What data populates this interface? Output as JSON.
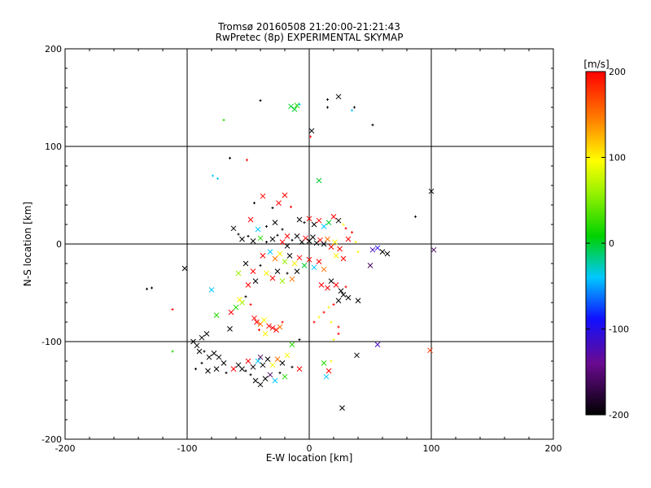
{
  "chart_data": {
    "type": "scatter",
    "title": "Tromsø 20160508 21:20:00-21:21:43",
    "subtitle": "RwPretec (8p) EXPERIMENTAL SKYMAP",
    "xlabel": "E-W location [km]",
    "ylabel": "N-S location [km]",
    "xlim": [
      -200,
      200
    ],
    "ylim": [
      -200,
      200
    ],
    "xticks": [
      "-200",
      "-100",
      "0",
      "100",
      "200"
    ],
    "yticks": [
      "-200",
      "-100",
      "0",
      "100",
      "200"
    ],
    "grid": true,
    "colorbar": {
      "label": "[m/s]",
      "range": [
        -200,
        200
      ],
      "ticks": [
        "-200",
        "-100",
        "0",
        "100",
        "200"
      ],
      "colormap": "black-purple-blue-cyan-green-yellow-red",
      "placement": "right"
    },
    "marker_legend": "x = large-amplitude echo, + / dot = small echo; color = Doppler velocity [m/s]",
    "points": [
      {
        "x": 24,
        "y": 151,
        "v": -200,
        "m": "x"
      },
      {
        "x": 2,
        "y": 116,
        "v": -200,
        "m": "x"
      },
      {
        "x": -40,
        "y": 147,
        "v": -200,
        "m": "+"
      },
      {
        "x": -15,
        "y": 141,
        "v": 0,
        "m": "x"
      },
      {
        "x": -12,
        "y": 138,
        "v": 0,
        "m": "x"
      },
      {
        "x": -10,
        "y": 142,
        "v": 20,
        "m": "x"
      },
      {
        "x": -8,
        "y": 143,
        "v": -40,
        "m": "+"
      },
      {
        "x": 15,
        "y": 140,
        "v": -200,
        "m": "+"
      },
      {
        "x": 37,
        "y": 140,
        "v": -200,
        "m": "+"
      },
      {
        "x": 35,
        "y": 137,
        "v": -40,
        "m": "+"
      },
      {
        "x": 52,
        "y": 122,
        "v": -200,
        "m": "+"
      },
      {
        "x": 15,
        "y": 148,
        "v": -200,
        "m": "+"
      },
      {
        "x": 1,
        "y": 110,
        "v": 200,
        "m": "+"
      },
      {
        "x": -70,
        "y": 127,
        "v": 20,
        "m": "+"
      },
      {
        "x": -65,
        "y": 88,
        "v": -200,
        "m": "+"
      },
      {
        "x": -51,
        "y": 86,
        "v": 200,
        "m": "+"
      },
      {
        "x": -79,
        "y": 70,
        "v": -40,
        "m": "+"
      },
      {
        "x": -75,
        "y": 67,
        "v": -40,
        "m": "+"
      },
      {
        "x": 8,
        "y": 65,
        "v": 0,
        "m": "x"
      },
      {
        "x": 100,
        "y": 54,
        "v": -200,
        "m": "x"
      },
      {
        "x": 87,
        "y": 28,
        "v": -200,
        "m": "+"
      },
      {
        "x": -38,
        "y": 49,
        "v": 200,
        "m": "x"
      },
      {
        "x": -20,
        "y": 50,
        "v": 200,
        "m": "x"
      },
      {
        "x": -25,
        "y": 42,
        "v": 200,
        "m": "x"
      },
      {
        "x": -45,
        "y": 42,
        "v": -200,
        "m": "+"
      },
      {
        "x": -30,
        "y": 37,
        "v": -200,
        "m": "+"
      },
      {
        "x": -15,
        "y": 38,
        "v": 200,
        "m": "+"
      },
      {
        "x": -48,
        "y": 25,
        "v": 200,
        "m": "x"
      },
      {
        "x": -42,
        "y": 15,
        "v": -40,
        "m": "x"
      },
      {
        "x": -35,
        "y": 18,
        "v": -200,
        "m": "+"
      },
      {
        "x": -28,
        "y": 22,
        "v": -200,
        "m": "x"
      },
      {
        "x": -22,
        "y": 15,
        "v": -200,
        "m": "+"
      },
      {
        "x": -18,
        "y": 8,
        "v": 200,
        "m": "x"
      },
      {
        "x": -62,
        "y": 16,
        "v": -200,
        "m": "x"
      },
      {
        "x": -58,
        "y": 10,
        "v": -200,
        "m": "+"
      },
      {
        "x": -55,
        "y": 5,
        "v": -200,
        "m": "x"
      },
      {
        "x": -50,
        "y": 8,
        "v": -200,
        "m": "+"
      },
      {
        "x": -46,
        "y": 3,
        "v": -200,
        "m": "x"
      },
      {
        "x": -40,
        "y": 6,
        "v": 20,
        "m": "x"
      },
      {
        "x": -35,
        "y": 2,
        "v": -200,
        "m": "+"
      },
      {
        "x": -30,
        "y": 5,
        "v": -200,
        "m": "x"
      },
      {
        "x": -26,
        "y": 9,
        "v": -200,
        "m": "+"
      },
      {
        "x": -22,
        "y": 2,
        "v": 200,
        "m": "x"
      },
      {
        "x": -18,
        "y": -2,
        "v": -200,
        "m": "x"
      },
      {
        "x": -14,
        "y": 4,
        "v": -200,
        "m": "+"
      },
      {
        "x": -10,
        "y": 8,
        "v": -200,
        "m": "x"
      },
      {
        "x": -6,
        "y": 2,
        "v": -200,
        "m": "x"
      },
      {
        "x": -3,
        "y": 6,
        "v": 200,
        "m": "x"
      },
      {
        "x": 0,
        "y": 3,
        "v": -200,
        "m": "x"
      },
      {
        "x": 3,
        "y": 7,
        "v": -200,
        "m": "x"
      },
      {
        "x": 6,
        "y": 1,
        "v": -200,
        "m": "x"
      },
      {
        "x": 9,
        "y": 4,
        "v": 200,
        "m": "x"
      },
      {
        "x": 12,
        "y": 0,
        "v": -200,
        "m": "x"
      },
      {
        "x": 15,
        "y": 5,
        "v": 150,
        "m": "x"
      },
      {
        "x": 18,
        "y": -3,
        "v": 200,
        "m": "x"
      },
      {
        "x": 21,
        "y": 2,
        "v": 100,
        "m": "x"
      },
      {
        "x": -8,
        "y": 25,
        "v": -200,
        "m": "x"
      },
      {
        "x": -4,
        "y": 22,
        "v": -200,
        "m": "+"
      },
      {
        "x": 0,
        "y": 26,
        "v": 200,
        "m": "x"
      },
      {
        "x": 4,
        "y": 20,
        "v": -200,
        "m": "x"
      },
      {
        "x": 8,
        "y": 24,
        "v": 200,
        "m": "x"
      },
      {
        "x": 12,
        "y": 18,
        "v": -40,
        "m": "x"
      },
      {
        "x": 16,
        "y": 22,
        "v": 0,
        "m": "x"
      },
      {
        "x": 20,
        "y": 28,
        "v": 200,
        "m": "x"
      },
      {
        "x": 24,
        "y": 24,
        "v": -200,
        "m": "x"
      },
      {
        "x": 28,
        "y": 20,
        "v": 100,
        "m": "+"
      },
      {
        "x": 30,
        "y": 16,
        "v": 200,
        "m": "+"
      },
      {
        "x": 35,
        "y": 12,
        "v": 200,
        "m": "+"
      },
      {
        "x": 38,
        "y": 2,
        "v": 100,
        "m": "+"
      },
      {
        "x": 40,
        "y": -8,
        "v": 100,
        "m": "+"
      },
      {
        "x": 32,
        "y": 5,
        "v": 200,
        "m": "x"
      },
      {
        "x": 25,
        "y": -5,
        "v": 200,
        "m": "x"
      },
      {
        "x": 22,
        "y": -12,
        "v": 100,
        "m": "x"
      },
      {
        "x": 28,
        "y": -15,
        "v": 200,
        "m": "x"
      },
      {
        "x": -38,
        "y": -12,
        "v": 200,
        "m": "x"
      },
      {
        "x": -32,
        "y": -8,
        "v": -40,
        "m": "x"
      },
      {
        "x": -28,
        "y": -15,
        "v": 150,
        "m": "x"
      },
      {
        "x": -24,
        "y": -10,
        "v": 100,
        "m": "x"
      },
      {
        "x": -20,
        "y": -18,
        "v": 60,
        "m": "x"
      },
      {
        "x": -16,
        "y": -12,
        "v": -200,
        "m": "x"
      },
      {
        "x": -12,
        "y": -20,
        "v": 100,
        "m": "x"
      },
      {
        "x": -8,
        "y": -14,
        "v": 200,
        "m": "x"
      },
      {
        "x": -4,
        "y": -22,
        "v": 0,
        "m": "x"
      },
      {
        "x": 0,
        "y": -16,
        "v": 200,
        "m": "x"
      },
      {
        "x": 4,
        "y": -24,
        "v": -40,
        "m": "x"
      },
      {
        "x": 8,
        "y": -18,
        "v": 200,
        "m": "x"
      },
      {
        "x": 12,
        "y": -26,
        "v": 150,
        "m": "x"
      },
      {
        "x": -52,
        "y": -20,
        "v": -200,
        "m": "x"
      },
      {
        "x": -46,
        "y": -28,
        "v": 200,
        "m": "x"
      },
      {
        "x": -40,
        "y": -22,
        "v": -200,
        "m": "+"
      },
      {
        "x": -35,
        "y": -30,
        "v": 100,
        "m": "x"
      },
      {
        "x": -30,
        "y": -35,
        "v": 200,
        "m": "x"
      },
      {
        "x": -26,
        "y": -28,
        "v": -200,
        "m": "x"
      },
      {
        "x": -22,
        "y": -38,
        "v": 60,
        "m": "x"
      },
      {
        "x": -18,
        "y": -30,
        "v": -200,
        "m": "+"
      },
      {
        "x": -14,
        "y": -36,
        "v": 150,
        "m": "x"
      },
      {
        "x": -10,
        "y": -28,
        "v": -200,
        "m": "x"
      },
      {
        "x": -44,
        "y": -38,
        "v": -200,
        "m": "x"
      },
      {
        "x": -50,
        "y": -42,
        "v": 200,
        "m": "x"
      },
      {
        "x": -58,
        "y": -30,
        "v": 60,
        "m": "x"
      },
      {
        "x": -102,
        "y": -25,
        "v": -200,
        "m": "x"
      },
      {
        "x": -133,
        "y": -46,
        "v": -200,
        "m": "+"
      },
      {
        "x": -129,
        "y": -45,
        "v": -200,
        "m": "+"
      },
      {
        "x": -80,
        "y": -47,
        "v": -40,
        "m": "x"
      },
      {
        "x": -112,
        "y": -67,
        "v": 200,
        "m": "+"
      },
      {
        "x": 10,
        "y": -42,
        "v": 200,
        "m": "x"
      },
      {
        "x": 15,
        "y": -45,
        "v": 200,
        "m": "x"
      },
      {
        "x": 18,
        "y": -38,
        "v": -200,
        "m": "x"
      },
      {
        "x": 22,
        "y": -42,
        "v": 200,
        "m": "x"
      },
      {
        "x": 26,
        "y": -48,
        "v": -200,
        "m": "x"
      },
      {
        "x": 30,
        "y": -44,
        "v": 200,
        "m": "+"
      },
      {
        "x": 28,
        "y": -52,
        "v": -200,
        "m": "x"
      },
      {
        "x": 32,
        "y": -55,
        "v": -200,
        "m": "x"
      },
      {
        "x": 24,
        "y": -58,
        "v": -200,
        "m": "x"
      },
      {
        "x": 20,
        "y": -62,
        "v": 200,
        "m": "+"
      },
      {
        "x": 16,
        "y": -65,
        "v": 100,
        "m": "+"
      },
      {
        "x": 12,
        "y": -70,
        "v": 200,
        "m": "+"
      },
      {
        "x": 8,
        "y": -75,
        "v": 100,
        "m": "+"
      },
      {
        "x": 4,
        "y": -80,
        "v": 200,
        "m": "+"
      },
      {
        "x": 18,
        "y": -80,
        "v": 100,
        "m": "+"
      },
      {
        "x": 24,
        "y": -85,
        "v": 200,
        "m": "+"
      },
      {
        "x": 40,
        "y": -58,
        "v": -200,
        "m": "x"
      },
      {
        "x": 50,
        "y": -22,
        "v": -160,
        "m": "x"
      },
      {
        "x": 52,
        "y": -6,
        "v": -120,
        "m": "x"
      },
      {
        "x": 56,
        "y": -4,
        "v": -100,
        "m": "x"
      },
      {
        "x": 60,
        "y": -8,
        "v": -200,
        "m": "x"
      },
      {
        "x": 64,
        "y": -10,
        "v": -200,
        "m": "x"
      },
      {
        "x": 102,
        "y": -6,
        "v": -160,
        "m": "x"
      },
      {
        "x": 56,
        "y": -103,
        "v": -120,
        "m": "x"
      },
      {
        "x": 99,
        "y": -109,
        "v": 180,
        "m": "x"
      },
      {
        "x": 39,
        "y": -114,
        "v": -200,
        "m": "x"
      },
      {
        "x": 27,
        "y": -168,
        "v": -200,
        "m": "x"
      },
      {
        "x": -55,
        "y": -60,
        "v": 60,
        "m": "x"
      },
      {
        "x": -60,
        "y": -65,
        "v": 20,
        "m": "x"
      },
      {
        "x": -64,
        "y": -70,
        "v": 200,
        "m": "x"
      },
      {
        "x": -57,
        "y": -57,
        "v": 100,
        "m": "x"
      },
      {
        "x": -52,
        "y": -54,
        "v": -200,
        "m": "+"
      },
      {
        "x": -48,
        "y": -62,
        "v": 200,
        "m": "+"
      },
      {
        "x": -76,
        "y": -73,
        "v": 20,
        "m": "x"
      },
      {
        "x": -65,
        "y": -87,
        "v": -200,
        "m": "x"
      },
      {
        "x": -45,
        "y": -76,
        "v": 200,
        "m": "x"
      },
      {
        "x": -43,
        "y": -80,
        "v": 200,
        "m": "x"
      },
      {
        "x": -40,
        "y": -82,
        "v": 150,
        "m": "x"
      },
      {
        "x": -37,
        "y": -78,
        "v": 100,
        "m": "x"
      },
      {
        "x": -33,
        "y": -84,
        "v": 200,
        "m": "x"
      },
      {
        "x": -30,
        "y": -86,
        "v": 200,
        "m": "x"
      },
      {
        "x": -27,
        "y": -88,
        "v": 200,
        "m": "x"
      },
      {
        "x": -24,
        "y": -85,
        "v": 150,
        "m": "x"
      },
      {
        "x": -41,
        "y": -88,
        "v": 200,
        "m": "+"
      },
      {
        "x": -36,
        "y": -92,
        "v": 100,
        "m": "x"
      },
      {
        "x": -22,
        "y": -80,
        "v": 200,
        "m": "+"
      },
      {
        "x": -14,
        "y": -103,
        "v": 20,
        "m": "x"
      },
      {
        "x": -8,
        "y": -98,
        "v": -200,
        "m": "+"
      },
      {
        "x": 20,
        "y": -98,
        "v": 100,
        "m": "+"
      },
      {
        "x": 24,
        "y": -92,
        "v": 200,
        "m": "+"
      },
      {
        "x": -84,
        "y": -92,
        "v": -200,
        "m": "x"
      },
      {
        "x": -88,
        "y": -96,
        "v": -200,
        "m": "x"
      },
      {
        "x": -92,
        "y": -104,
        "v": -200,
        "m": "x"
      },
      {
        "x": -90,
        "y": -110,
        "v": -200,
        "m": "x"
      },
      {
        "x": -95,
        "y": -100,
        "v": -200,
        "m": "x"
      },
      {
        "x": -86,
        "y": -110,
        "v": -200,
        "m": "+"
      },
      {
        "x": -82,
        "y": -116,
        "v": -200,
        "m": "x"
      },
      {
        "x": -78,
        "y": -112,
        "v": -200,
        "m": "x"
      },
      {
        "x": -74,
        "y": -116,
        "v": -200,
        "m": "x"
      },
      {
        "x": -70,
        "y": -122,
        "v": -200,
        "m": "x"
      },
      {
        "x": -88,
        "y": -122,
        "v": -200,
        "m": "+"
      },
      {
        "x": -93,
        "y": -128,
        "v": -200,
        "m": "+"
      },
      {
        "x": -83,
        "y": -130,
        "v": -200,
        "m": "x"
      },
      {
        "x": -76,
        "y": -128,
        "v": -200,
        "m": "x"
      },
      {
        "x": -68,
        "y": -132,
        "v": -200,
        "m": "+"
      },
      {
        "x": -62,
        "y": -128,
        "v": 200,
        "m": "x"
      },
      {
        "x": -58,
        "y": -124,
        "v": -200,
        "m": "x"
      },
      {
        "x": -55,
        "y": -128,
        "v": -200,
        "m": "x"
      },
      {
        "x": -50,
        "y": -120,
        "v": 200,
        "m": "x"
      },
      {
        "x": -46,
        "y": -126,
        "v": -200,
        "m": "x"
      },
      {
        "x": -42,
        "y": -120,
        "v": -40,
        "m": "x"
      },
      {
        "x": -38,
        "y": -124,
        "v": -200,
        "m": "x"
      },
      {
        "x": -34,
        "y": -118,
        "v": -200,
        "m": "x"
      },
      {
        "x": -30,
        "y": -124,
        "v": 100,
        "m": "x"
      },
      {
        "x": -26,
        "y": -118,
        "v": 150,
        "m": "x"
      },
      {
        "x": -22,
        "y": -122,
        "v": -200,
        "m": "x"
      },
      {
        "x": -18,
        "y": -114,
        "v": 100,
        "m": "x"
      },
      {
        "x": -112,
        "y": -110,
        "v": 20,
        "m": "+"
      },
      {
        "x": -44,
        "y": -140,
        "v": -200,
        "m": "x"
      },
      {
        "x": -40,
        "y": -144,
        "v": -200,
        "m": "x"
      },
      {
        "x": -36,
        "y": -138,
        "v": -200,
        "m": "x"
      },
      {
        "x": -32,
        "y": -134,
        "v": -160,
        "m": "x"
      },
      {
        "x": -28,
        "y": -140,
        "v": -40,
        "m": "x"
      },
      {
        "x": -24,
        "y": -132,
        "v": -200,
        "m": "+"
      },
      {
        "x": -20,
        "y": -136,
        "v": 20,
        "m": "x"
      },
      {
        "x": -48,
        "y": -134,
        "v": -200,
        "m": "+"
      },
      {
        "x": -52,
        "y": -130,
        "v": -200,
        "m": "+"
      },
      {
        "x": -14,
        "y": -126,
        "v": -200,
        "m": "+"
      },
      {
        "x": -8,
        "y": -128,
        "v": 200,
        "m": "x"
      },
      {
        "x": 12,
        "y": -122,
        "v": 20,
        "m": "x"
      },
      {
        "x": 14,
        "y": -136,
        "v": -40,
        "m": "x"
      },
      {
        "x": 16,
        "y": -130,
        "v": 200,
        "m": "x"
      },
      {
        "x": 18,
        "y": -120,
        "v": 100,
        "m": "+"
      },
      {
        "x": -40,
        "y": -116,
        "v": -160,
        "m": "x"
      }
    ]
  }
}
